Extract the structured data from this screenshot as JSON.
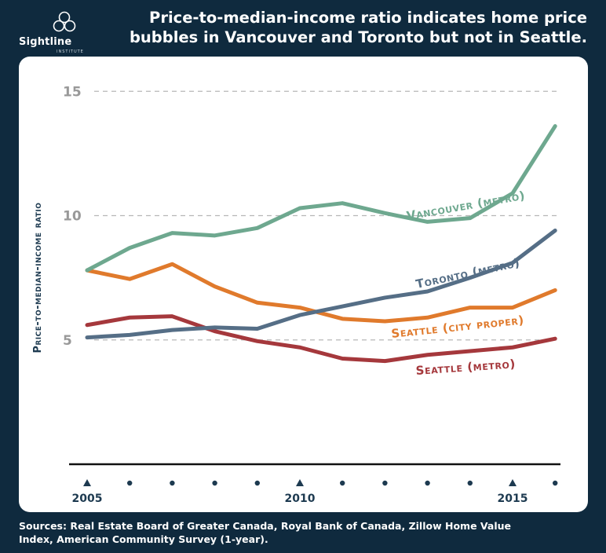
{
  "header": {
    "logo_text": "Sightline",
    "logo_sub": "INSTITUTE",
    "title_line1": "Price-to-median-income ratio indicates home price",
    "title_line2": "bubbles in Vancouver and Toronto but not in Seattle."
  },
  "sources": {
    "line1": "Sources: Real Estate Board of Greater Canada, Royal Bank of Canada, Zillow Home Value",
    "line2": "Index, American Community Survey (1-year)."
  },
  "colors": {
    "background": "#0f2a3e",
    "vancouver": "#6ea88f",
    "toronto": "#556e86",
    "seattle_city": "#e07a2c",
    "seattle_metro": "#a5383c",
    "axis_label": "#1d3a50",
    "tick_label": "#999999"
  },
  "chart_data": {
    "type": "line",
    "title": "Price-to-median-income ratio indicates home price bubbles in Vancouver and Toronto but not in Seattle.",
    "ylabel": "Price-to-median-income ratio",
    "xlabel": "",
    "x": [
      2005,
      2006,
      2007,
      2008,
      2009,
      2010,
      2011,
      2012,
      2013,
      2014,
      2015,
      2016
    ],
    "xticks_labeled": [
      2005,
      2010,
      2015
    ],
    "yticks": [
      5,
      10,
      15
    ],
    "ylim": [
      0,
      15
    ],
    "grid": "horizontal-dashed",
    "series": [
      {
        "name": "Vancouver (metro)",
        "color_key": "vancouver",
        "values": [
          7.8,
          8.7,
          9.3,
          9.2,
          9.5,
          10.3,
          10.5,
          10.1,
          9.75,
          9.9,
          10.9,
          13.6
        ]
      },
      {
        "name": "Toronto (metro)",
        "color_key": "toronto",
        "values": [
          5.1,
          5.2,
          5.4,
          5.5,
          5.45,
          6.0,
          6.35,
          6.7,
          6.95,
          7.5,
          8.1,
          9.4
        ]
      },
      {
        "name": "Seattle (city proper)",
        "color_key": "seattle_city",
        "values": [
          7.8,
          7.45,
          8.05,
          7.15,
          6.5,
          6.3,
          5.85,
          5.75,
          5.9,
          6.3,
          6.3,
          7.0
        ]
      },
      {
        "name": "Seattle (metro)",
        "color_key": "seattle_metro",
        "values": [
          5.6,
          5.9,
          5.95,
          5.35,
          4.95,
          4.7,
          4.25,
          4.15,
          4.4,
          4.55,
          4.7,
          5.05
        ]
      }
    ]
  }
}
